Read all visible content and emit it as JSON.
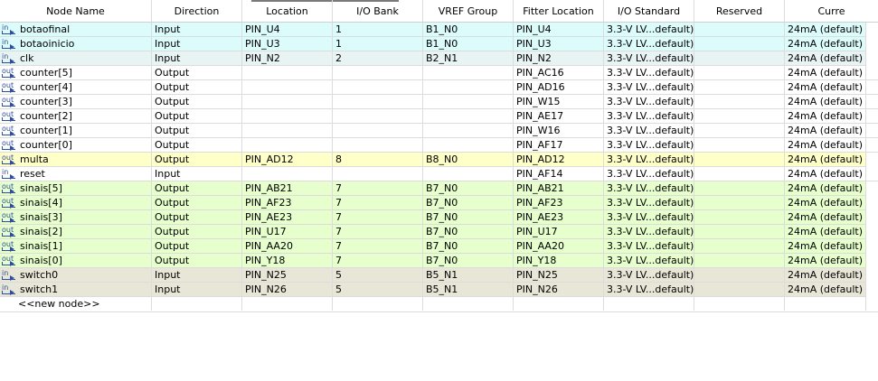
{
  "columns": [
    "Node Name",
    "Direction",
    "Location",
    "I/O Bank",
    "VREF Group",
    "Fitter Location",
    "I/O Standard",
    "Reserved",
    "Curre"
  ],
  "colors": {
    "cyan": "#dcfbfb",
    "blue": "#e8f4f4",
    "yellow": "#ffffc8",
    "green": "#e6ffcc",
    "khaki": "#e8e6d6",
    "white": "#ffffff"
  },
  "rows": [
    {
      "icon": "input-pin-icon",
      "icon_text": "in",
      "name": "botaofinal",
      "direction": "Input",
      "location": "PIN_U4",
      "bank": "1",
      "vref": "B1_N0",
      "fitter": "PIN_U4",
      "standard": "3.3-V LV...default)",
      "reserved": "",
      "current": "24mA (default)",
      "color": "cyan"
    },
    {
      "icon": "input-pin-icon",
      "icon_text": "in",
      "name": "botaoinicio",
      "direction": "Input",
      "location": "PIN_U3",
      "bank": "1",
      "vref": "B1_N0",
      "fitter": "PIN_U3",
      "standard": "3.3-V LV...default)",
      "reserved": "",
      "current": "24mA (default)",
      "color": "cyan"
    },
    {
      "icon": "input-pin-icon",
      "icon_text": "in",
      "name": "clk",
      "direction": "Input",
      "location": "PIN_N2",
      "bank": "2",
      "vref": "B2_N1",
      "fitter": "PIN_N2",
      "standard": "3.3-V LV...default)",
      "reserved": "",
      "current": "24mA (default)",
      "color": "blue"
    },
    {
      "icon": "output-pin-icon",
      "icon_text": "out",
      "name": "counter[5]",
      "direction": "Output",
      "location": "",
      "bank": "",
      "vref": "",
      "fitter": "PIN_AC16",
      "standard": "3.3-V LV...default)",
      "reserved": "",
      "current": "24mA (default)",
      "color": "white"
    },
    {
      "icon": "output-pin-icon",
      "icon_text": "out",
      "name": "counter[4]",
      "direction": "Output",
      "location": "",
      "bank": "",
      "vref": "",
      "fitter": "PIN_AD16",
      "standard": "3.3-V LV...default)",
      "reserved": "",
      "current": "24mA (default)",
      "color": "white"
    },
    {
      "icon": "output-pin-icon",
      "icon_text": "out",
      "name": "counter[3]",
      "direction": "Output",
      "location": "",
      "bank": "",
      "vref": "",
      "fitter": "PIN_W15",
      "standard": "3.3-V LV...default)",
      "reserved": "",
      "current": "24mA (default)",
      "color": "white"
    },
    {
      "icon": "output-pin-icon",
      "icon_text": "out",
      "name": "counter[2]",
      "direction": "Output",
      "location": "",
      "bank": "",
      "vref": "",
      "fitter": "PIN_AE17",
      "standard": "3.3-V LV...default)",
      "reserved": "",
      "current": "24mA (default)",
      "color": "white"
    },
    {
      "icon": "output-pin-icon",
      "icon_text": "out",
      "name": "counter[1]",
      "direction": "Output",
      "location": "",
      "bank": "",
      "vref": "",
      "fitter": "PIN_W16",
      "standard": "3.3-V LV...default)",
      "reserved": "",
      "current": "24mA (default)",
      "color": "white"
    },
    {
      "icon": "output-pin-icon",
      "icon_text": "out",
      "name": "counter[0]",
      "direction": "Output",
      "location": "",
      "bank": "",
      "vref": "",
      "fitter": "PIN_AF17",
      "standard": "3.3-V LV...default)",
      "reserved": "",
      "current": "24mA (default)",
      "color": "white"
    },
    {
      "icon": "output-pin-icon",
      "icon_text": "out",
      "name": "multa",
      "direction": "Output",
      "location": "PIN_AD12",
      "bank": "8",
      "vref": "B8_N0",
      "fitter": "PIN_AD12",
      "standard": "3.3-V LV...default)",
      "reserved": "",
      "current": "24mA (default)",
      "color": "yellow"
    },
    {
      "icon": "input-pin-icon",
      "icon_text": "in",
      "name": "reset",
      "direction": "Input",
      "location": "",
      "bank": "",
      "vref": "",
      "fitter": "PIN_AF14",
      "standard": "3.3-V LV...default)",
      "reserved": "",
      "current": "24mA (default)",
      "color": "white"
    },
    {
      "icon": "output-pin-icon",
      "icon_text": "out",
      "name": "sinais[5]",
      "direction": "Output",
      "location": "PIN_AB21",
      "bank": "7",
      "vref": "B7_N0",
      "fitter": "PIN_AB21",
      "standard": "3.3-V LV...default)",
      "reserved": "",
      "current": "24mA (default)",
      "color": "green"
    },
    {
      "icon": "output-pin-icon",
      "icon_text": "out",
      "name": "sinais[4]",
      "direction": "Output",
      "location": "PIN_AF23",
      "bank": "7",
      "vref": "B7_N0",
      "fitter": "PIN_AF23",
      "standard": "3.3-V LV...default)",
      "reserved": "",
      "current": "24mA (default)",
      "color": "green"
    },
    {
      "icon": "output-pin-icon",
      "icon_text": "out",
      "name": "sinais[3]",
      "direction": "Output",
      "location": "PIN_AE23",
      "bank": "7",
      "vref": "B7_N0",
      "fitter": "PIN_AE23",
      "standard": "3.3-V LV...default)",
      "reserved": "",
      "current": "24mA (default)",
      "color": "green"
    },
    {
      "icon": "output-pin-icon",
      "icon_text": "out",
      "name": "sinais[2]",
      "direction": "Output",
      "location": "PIN_U17",
      "bank": "7",
      "vref": "B7_N0",
      "fitter": "PIN_U17",
      "standard": "3.3-V LV...default)",
      "reserved": "",
      "current": "24mA (default)",
      "color": "green"
    },
    {
      "icon": "output-pin-icon",
      "icon_text": "out",
      "name": "sinais[1]",
      "direction": "Output",
      "location": "PIN_AA20",
      "bank": "7",
      "vref": "B7_N0",
      "fitter": "PIN_AA20",
      "standard": "3.3-V LV...default)",
      "reserved": "",
      "current": "24mA (default)",
      "color": "green"
    },
    {
      "icon": "output-pin-icon",
      "icon_text": "out",
      "name": "sinais[0]",
      "direction": "Output",
      "location": "PIN_Y18",
      "bank": "7",
      "vref": "B7_N0",
      "fitter": "PIN_Y18",
      "standard": "3.3-V LV...default)",
      "reserved": "",
      "current": "24mA (default)",
      "color": "green"
    },
    {
      "icon": "input-pin-icon",
      "icon_text": "in",
      "name": "switch0",
      "direction": "Input",
      "location": "PIN_N25",
      "bank": "5",
      "vref": "B5_N1",
      "fitter": "PIN_N25",
      "standard": "3.3-V LV...default)",
      "reserved": "",
      "current": "24mA (default)",
      "color": "khaki"
    },
    {
      "icon": "input-pin-icon",
      "icon_text": "in",
      "name": "switch1",
      "direction": "Input",
      "location": "PIN_N26",
      "bank": "5",
      "vref": "B5_N1",
      "fitter": "PIN_N26",
      "standard": "3.3-V LV...default)",
      "reserved": "",
      "current": "24mA (default)",
      "color": "khaki"
    }
  ],
  "new_node_label": "<<new node>>"
}
